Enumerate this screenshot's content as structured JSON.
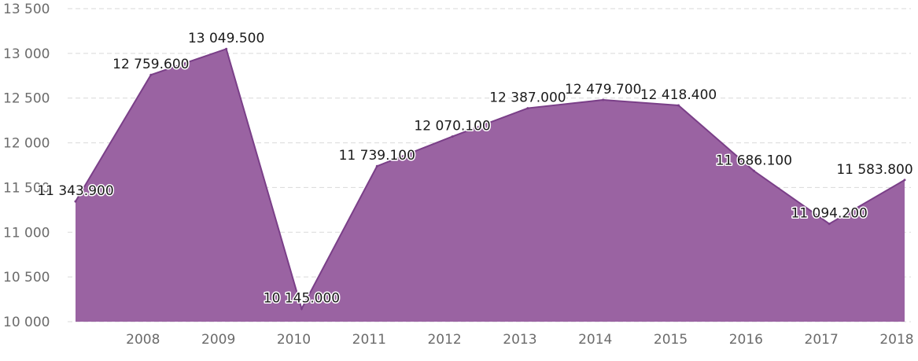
{
  "chart_data": {
    "type": "area",
    "title": "",
    "xlabel": "",
    "ylabel": "",
    "x": [
      "",
      "2008",
      "2009",
      "2010",
      "2011",
      "2012",
      "2013",
      "2014",
      "2015",
      "2016",
      "2017",
      "2018"
    ],
    "series": [
      {
        "name": "",
        "color": "#9a63a2",
        "line_color": "#7a3f88",
        "values": [
          11343.9,
          12759.6,
          13049.5,
          10145.0,
          11739.1,
          12070.1,
          12387.0,
          12479.7,
          12418.4,
          11686.1,
          11094.2,
          11583.8
        ],
        "labels": [
          "11 343.900",
          "12 759.600",
          "13 049.500",
          "10 145.000",
          "11 739.100",
          "12 070.100",
          "12 387.000",
          "12 479.700",
          "12 418.400",
          "11 686.100",
          "11 094.200",
          "11 583.800"
        ]
      }
    ],
    "ylim": [
      10000,
      13500
    ],
    "y_ticks": [
      10000,
      10500,
      11000,
      11500,
      12000,
      12500,
      13000,
      13500
    ],
    "y_tick_labels": [
      "10 000",
      "10 500",
      "11 000",
      "11 500",
      "12 000",
      "12 500",
      "13 000",
      "13 500"
    ],
    "grid": true,
    "legend": "none"
  }
}
